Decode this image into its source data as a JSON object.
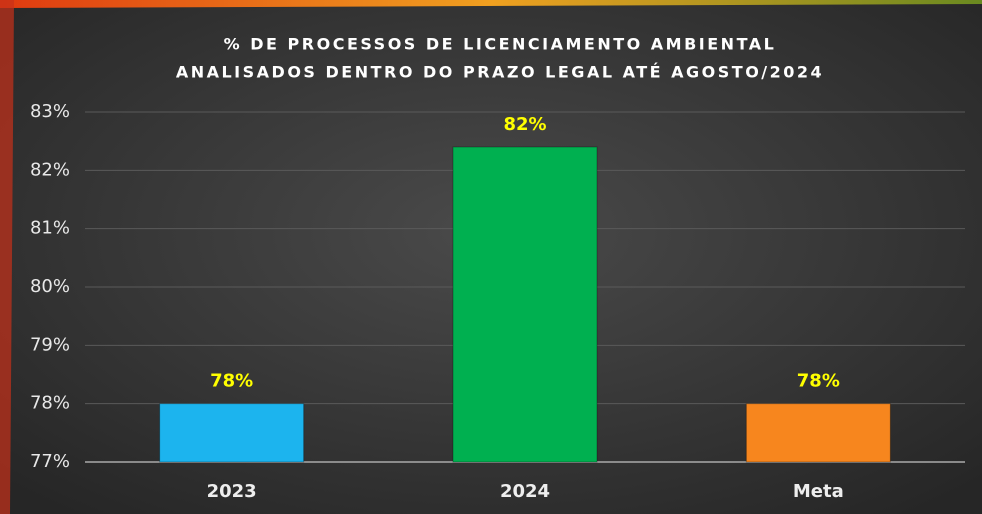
{
  "chart_data": {
    "type": "bar",
    "title": [
      "% DE PROCESSOS DE LICENCIAMENTO AMBIENTAL",
      "ANALISADOS DENTRO DO PRAZO LEGAL ATÉ AGOSTO/2024"
    ],
    "categories": [
      "2023",
      "2024",
      "Meta"
    ],
    "values": [
      78,
      82.4,
      78
    ],
    "value_labels": [
      "78%",
      "82%",
      "78%"
    ],
    "colors": [
      "#1cb4ee",
      "#00b050",
      "#f7861e"
    ],
    "ylim": [
      77,
      83
    ],
    "yticks": [
      {
        "value": 77,
        "label": "77%"
      },
      {
        "value": 78,
        "label": "78%"
      },
      {
        "value": 79,
        "label": "79%"
      },
      {
        "value": 80,
        "label": "80%"
      },
      {
        "value": 81,
        "label": "81%"
      },
      {
        "value": 82,
        "label": "82%"
      },
      {
        "value": 83,
        "label": "83%"
      }
    ],
    "grid": true
  }
}
